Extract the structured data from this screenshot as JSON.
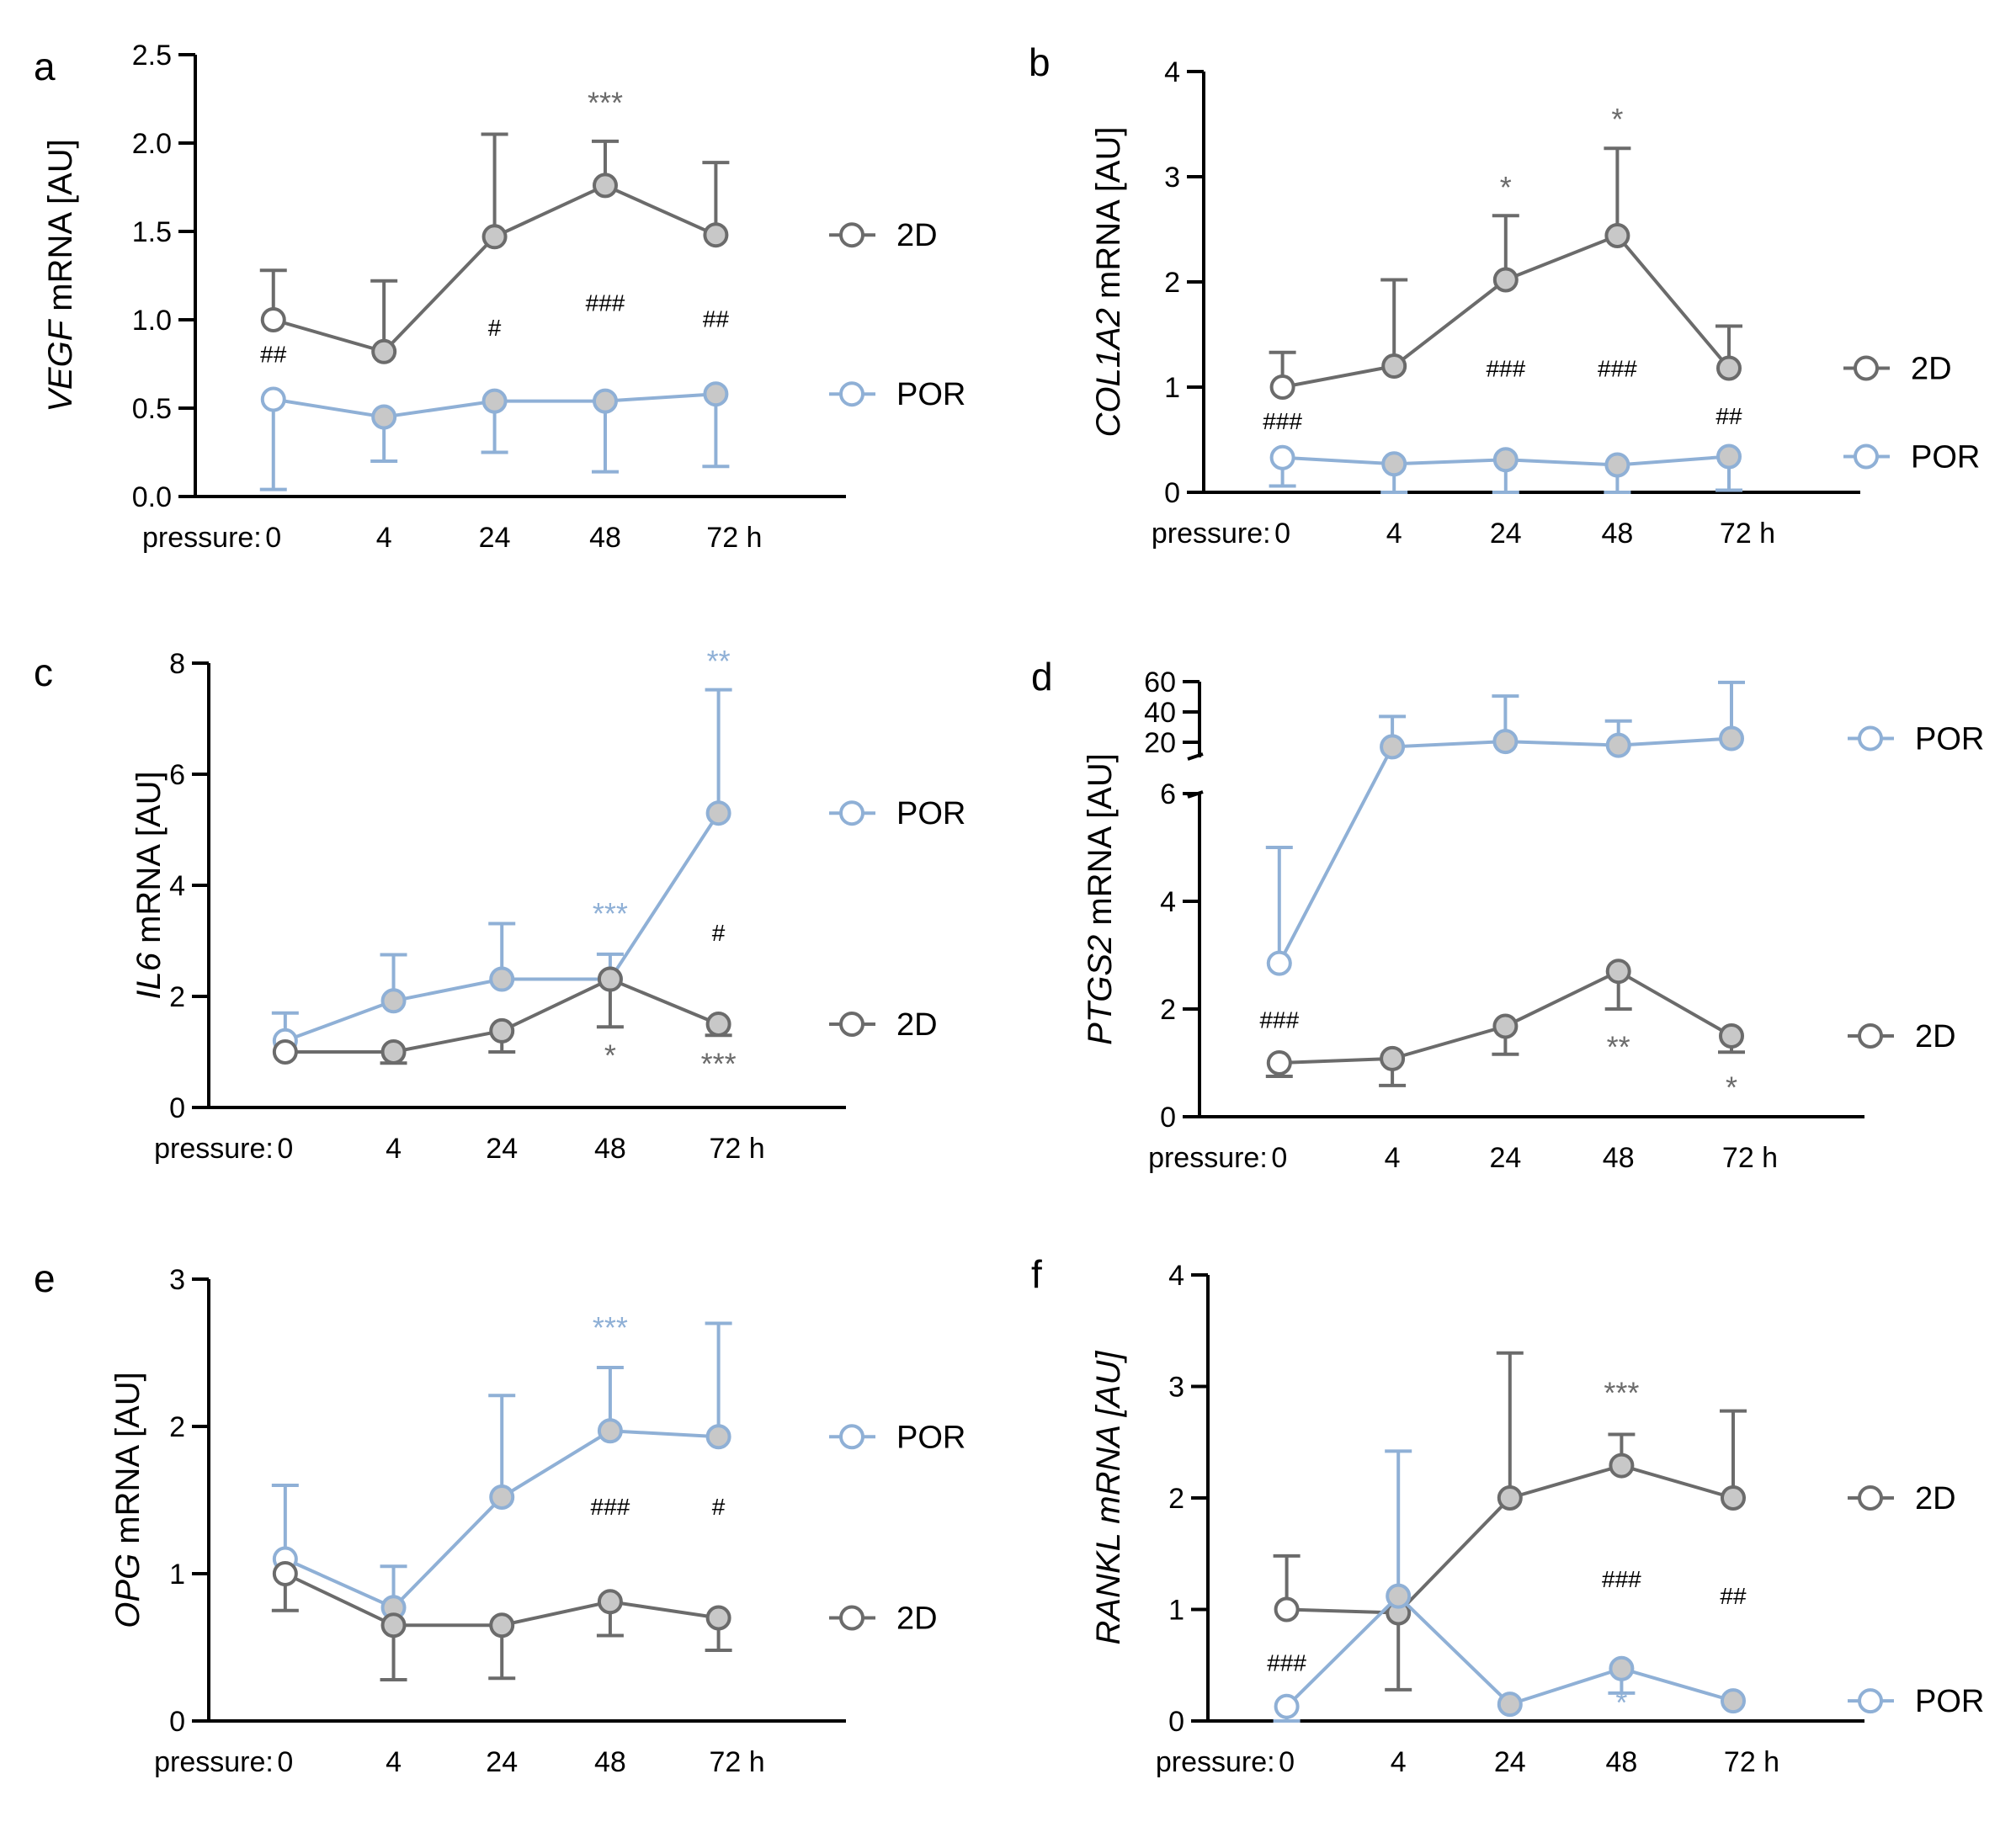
{
  "colors": {
    "2D": "#6b6b6b",
    "POR": "#8fb0d6",
    "filled": "#c8c8c8",
    "axis": "#000000"
  },
  "legend_labels": {
    "2D": "2D",
    "POR": "POR"
  },
  "chart_data": [
    {
      "panel": "a",
      "type": "line",
      "ylabel_gene": "VEGF",
      "ylabel_rest": " mRNA [AU]",
      "gene_italic_only": true,
      "x_prefix": "pressure:",
      "xticks": [
        "0",
        "4",
        "24",
        "48",
        "72 h"
      ],
      "ylim": [
        0,
        2.5
      ],
      "yticks": [
        0,
        0.5,
        1.0,
        1.5,
        2.0,
        2.5
      ],
      "ytick_labels": [
        "0.0",
        "0.5",
        "1.0",
        "1.5",
        "2.0",
        "2.5"
      ],
      "baseline_dotted": false,
      "series": [
        {
          "name": "2D",
          "values": [
            1.0,
            0.82,
            1.47,
            1.76,
            1.48
          ],
          "error": [
            [
              0.28,
              "up"
            ],
            [
              0.4,
              "up"
            ],
            [
              0.58,
              "up"
            ],
            [
              0.25,
              "up"
            ],
            [
              0.41,
              "up"
            ]
          ]
        },
        {
          "name": "POR",
          "values": [
            0.55,
            0.45,
            0.54,
            0.54,
            0.58
          ],
          "error": [
            [
              0.51,
              "down"
            ],
            [
              0.25,
              "down"
            ],
            [
              0.29,
              "down"
            ],
            [
              0.4,
              "down"
            ],
            [
              0.41,
              "down"
            ]
          ]
        }
      ],
      "annotations": [
        {
          "text": "***",
          "x": 3,
          "y": 2.17,
          "color": "2D",
          "kind": "sig"
        },
        {
          "text": "##",
          "x": 0,
          "y": 0.76,
          "kind": "hash"
        },
        {
          "text": "#",
          "x": 2,
          "y": 0.91,
          "kind": "hash"
        },
        {
          "text": "###",
          "x": 3,
          "y": 1.05,
          "kind": "hash"
        },
        {
          "text": "##",
          "x": 4,
          "y": 0.96,
          "kind": "hash"
        }
      ]
    },
    {
      "panel": "b",
      "type": "line",
      "ylabel_gene": "COL1A2",
      "ylabel_rest": " mRNA [AU]",
      "gene_italic_only": true,
      "x_prefix": "pressure:",
      "xticks": [
        "0",
        "4",
        "24",
        "48",
        "72 h"
      ],
      "ylim": [
        0,
        4
      ],
      "yticks": [
        0,
        1,
        2,
        3,
        4
      ],
      "ytick_labels": [
        "0",
        "1",
        "2",
        "3",
        "4"
      ],
      "baseline_dotted": true,
      "series": [
        {
          "name": "2D",
          "values": [
            1.0,
            1.2,
            2.02,
            2.44,
            1.18
          ],
          "error": [
            [
              0.33,
              "up"
            ],
            [
              0.82,
              "up"
            ],
            [
              0.61,
              "up"
            ],
            [
              0.83,
              "up"
            ],
            [
              0.4,
              "up"
            ]
          ]
        },
        {
          "name": "POR",
          "values": [
            0.33,
            0.27,
            0.31,
            0.26,
            0.34
          ],
          "error": [
            [
              0.27,
              "down"
            ],
            [
              0.27,
              "down"
            ],
            [
              0.4,
              "down"
            ],
            [
              0.28,
              "down"
            ],
            [
              0.32,
              "down"
            ]
          ]
        }
      ],
      "annotations": [
        {
          "text": "*",
          "x": 2,
          "y": 2.8,
          "color": "2D",
          "kind": "sig"
        },
        {
          "text": "*",
          "x": 3,
          "y": 3.45,
          "color": "2D",
          "kind": "sig"
        },
        {
          "text": "###",
          "x": 0,
          "y": 0.6,
          "kind": "hash"
        },
        {
          "text": "###",
          "x": 2,
          "y": 1.1,
          "kind": "hash"
        },
        {
          "text": "###",
          "x": 3,
          "y": 1.1,
          "kind": "hash"
        },
        {
          "text": "##",
          "x": 4,
          "y": 0.65,
          "kind": "hash"
        }
      ]
    },
    {
      "panel": "c",
      "type": "line",
      "ylabel_gene": "IL6",
      "ylabel_rest": " mRNA [AU]",
      "gene_italic_only": true,
      "x_prefix": "pressure:",
      "xticks": [
        "0",
        "4",
        "24",
        "48",
        "72 h"
      ],
      "ylim": [
        0,
        8
      ],
      "yticks": [
        0,
        2,
        4,
        6,
        8
      ],
      "ytick_labels": [
        "0",
        "2",
        "4",
        "6",
        "8"
      ],
      "baseline_dotted": false,
      "series": [
        {
          "name": "POR",
          "values": [
            1.2,
            1.92,
            2.31,
            2.31,
            5.3
          ],
          "error": [
            [
              0.5,
              "up"
            ],
            [
              0.83,
              "up"
            ],
            [
              1.0,
              "up"
            ],
            [
              0.45,
              "up"
            ],
            [
              2.22,
              "up"
            ]
          ]
        },
        {
          "name": "2D",
          "values": [
            1.0,
            1.0,
            1.38,
            2.31,
            1.5
          ],
          "error": [
            [
              0.0,
              "down"
            ],
            [
              0.2,
              "down"
            ],
            [
              0.38,
              "down"
            ],
            [
              0.86,
              "down"
            ],
            [
              0.2,
              "down"
            ]
          ]
        }
      ],
      "annotations": [
        {
          "text": "**",
          "x": 4,
          "y": 7.85,
          "color": "POR",
          "kind": "sig"
        },
        {
          "text": "***",
          "x": 3,
          "y": 3.3,
          "color": "POR",
          "kind": "sig"
        },
        {
          "text": "#",
          "x": 4,
          "y": 3.0,
          "kind": "hash"
        },
        {
          "text": "*",
          "x": 3,
          "y": 0.75,
          "color": "2D",
          "kind": "sig"
        },
        {
          "text": "***",
          "x": 4,
          "y": 0.6,
          "color": "2D",
          "kind": "sig"
        }
      ]
    },
    {
      "panel": "d",
      "type": "line",
      "broken_axis": true,
      "ylabel_gene": "PTGS2",
      "ylabel_rest": " mRNA [AU]",
      "gene_italic_only": true,
      "x_prefix": "pressure:",
      "xticks": [
        "0",
        "4",
        "24",
        "48",
        "72 h"
      ],
      "ylim_lower": [
        0,
        6
      ],
      "yticks_lower": [
        0,
        2,
        4,
        6
      ],
      "ylim_upper": [
        10,
        60
      ],
      "yticks_upper": [
        20,
        40,
        60
      ],
      "baseline_dotted": false,
      "series": [
        {
          "name": "POR",
          "values": [
            2.85,
            17.0,
            20.5,
            18.0,
            22.5
          ],
          "error": [
            [
              2.15,
              "up"
            ],
            [
              20.0,
              "up"
            ],
            [
              30.0,
              "up"
            ],
            [
              16.0,
              "up"
            ],
            [
              37.0,
              "up"
            ]
          ]
        },
        {
          "name": "2D",
          "values": [
            1.0,
            1.08,
            1.68,
            2.7,
            1.5
          ],
          "error": [
            [
              0.25,
              "down"
            ],
            [
              0.5,
              "down"
            ],
            [
              0.52,
              "down"
            ],
            [
              0.7,
              "down"
            ],
            [
              0.3,
              "down"
            ]
          ]
        }
      ],
      "annotations": [
        {
          "text": "###",
          "x": 0,
          "y": 1.65,
          "kind": "hash"
        },
        {
          "text": "**",
          "x": 3,
          "y": 1.1,
          "color": "2D",
          "kind": "sig"
        },
        {
          "text": "*",
          "x": 4,
          "y": 0.35,
          "color": "2D",
          "kind": "sig"
        }
      ]
    },
    {
      "panel": "e",
      "type": "line",
      "ylabel_gene": "OPG",
      "ylabel_rest": " mRNA [AU]",
      "gene_italic_only": true,
      "x_prefix": "pressure:",
      "xticks": [
        "0",
        "4",
        "24",
        "48",
        "72 h"
      ],
      "ylim": [
        0,
        3
      ],
      "yticks": [
        0,
        1,
        2,
        3
      ],
      "ytick_labels": [
        "0",
        "1",
        "2",
        "3"
      ],
      "baseline_dotted": false,
      "series": [
        {
          "name": "POR",
          "values": [
            1.1,
            0.77,
            1.52,
            1.97,
            1.93
          ],
          "error": [
            [
              0.5,
              "up"
            ],
            [
              0.28,
              "up"
            ],
            [
              0.69,
              "up"
            ],
            [
              0.43,
              "up"
            ],
            [
              0.77,
              "up"
            ]
          ]
        },
        {
          "name": "2D",
          "values": [
            1.0,
            0.65,
            0.65,
            0.81,
            0.7
          ],
          "error": [
            [
              0.25,
              "down"
            ],
            [
              0.37,
              "down"
            ],
            [
              0.36,
              "down"
            ],
            [
              0.23,
              "down"
            ],
            [
              0.22,
              "down"
            ]
          ]
        }
      ],
      "annotations": [
        {
          "text": "***",
          "x": 3,
          "y": 2.6,
          "color": "POR",
          "kind": "sig"
        },
        {
          "text": "###",
          "x": 3,
          "y": 1.4,
          "kind": "hash"
        },
        {
          "text": "#",
          "x": 4,
          "y": 1.4,
          "kind": "hash"
        }
      ]
    },
    {
      "panel": "f",
      "type": "line",
      "ylabel_gene": "RANKL",
      "ylabel_rest": " mRNA [AU]",
      "gene_italic_only": false,
      "x_prefix": "pressure:",
      "xticks": [
        "0",
        "4",
        "24",
        "48",
        "72 h"
      ],
      "ylim": [
        0,
        4
      ],
      "yticks": [
        0,
        1,
        2,
        3,
        4
      ],
      "ytick_labels": [
        "0",
        "1",
        "2",
        "3",
        "4"
      ],
      "baseline_dotted": true,
      "series": [
        {
          "name": "2D",
          "values": [
            1.0,
            0.97,
            2.0,
            2.29,
            2.0
          ],
          "error": [
            [
              0.48,
              "up"
            ],
            [
              0.69,
              "down"
            ],
            [
              1.3,
              "up"
            ],
            [
              0.28,
              "up"
            ],
            [
              0.78,
              "up"
            ]
          ]
        },
        {
          "name": "POR",
          "values": [
            0.13,
            1.12,
            0.15,
            0.47,
            0.18
          ],
          "error": [
            [
              0.13,
              "down"
            ],
            [
              1.3,
              "up"
            ],
            [
              0.0,
              "down"
            ],
            [
              0.22,
              "down"
            ],
            [
              0.0,
              "down"
            ]
          ]
        }
      ],
      "annotations": [
        {
          "text": "***",
          "x": 3,
          "y": 2.85,
          "color": "2D",
          "kind": "sig"
        },
        {
          "text": "###",
          "x": 0,
          "y": 0.45,
          "kind": "hash"
        },
        {
          "text": "###",
          "x": 3,
          "y": 1.2,
          "kind": "hash"
        },
        {
          "text": "##",
          "x": 4,
          "y": 1.05,
          "kind": "hash"
        },
        {
          "text": "*",
          "x": 3,
          "y": 0.07,
          "color": "POR",
          "kind": "sig"
        }
      ]
    }
  ]
}
